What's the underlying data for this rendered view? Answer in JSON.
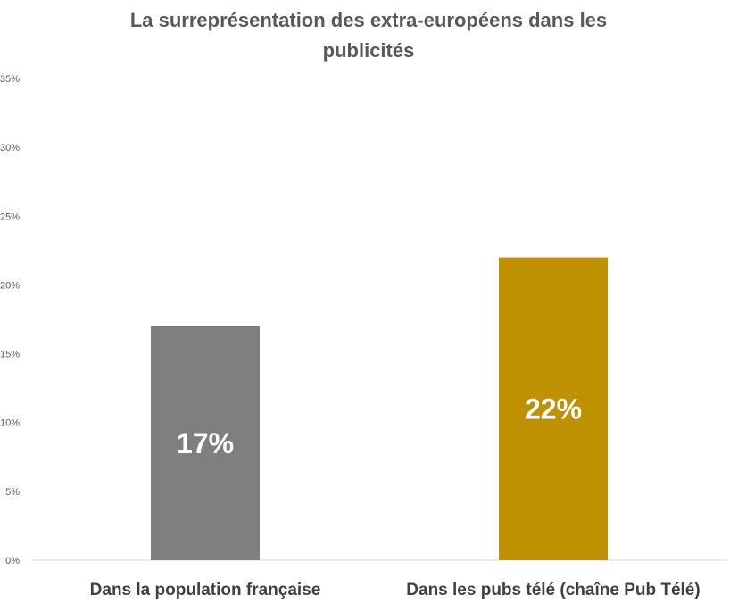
{
  "chart_data": {
    "type": "bar",
    "title_lines": [
      "La surreprésentation des extra-européens dans les",
      "publicités"
    ],
    "categories": [
      "Dans la population française",
      "Dans les pubs télé (chaîne Pub Télé)"
    ],
    "values": [
      17,
      22
    ],
    "data_labels": [
      "17%",
      "22%"
    ],
    "colors": [
      "#7f7f7f",
      "#bf9000"
    ],
    "ylim": [
      0,
      35
    ],
    "yticks": [
      0,
      5,
      10,
      15,
      20,
      25,
      30,
      35
    ],
    "ytick_labels": [
      "0%",
      "5%",
      "10%",
      "15%",
      "20%",
      "25%",
      "30%",
      "35%"
    ],
    "xlabel": "",
    "ylabel": "",
    "grid": false,
    "legend": false,
    "axis_color": "#d9d9d9",
    "title_color": "#595959",
    "category_label_color": "#404040"
  }
}
